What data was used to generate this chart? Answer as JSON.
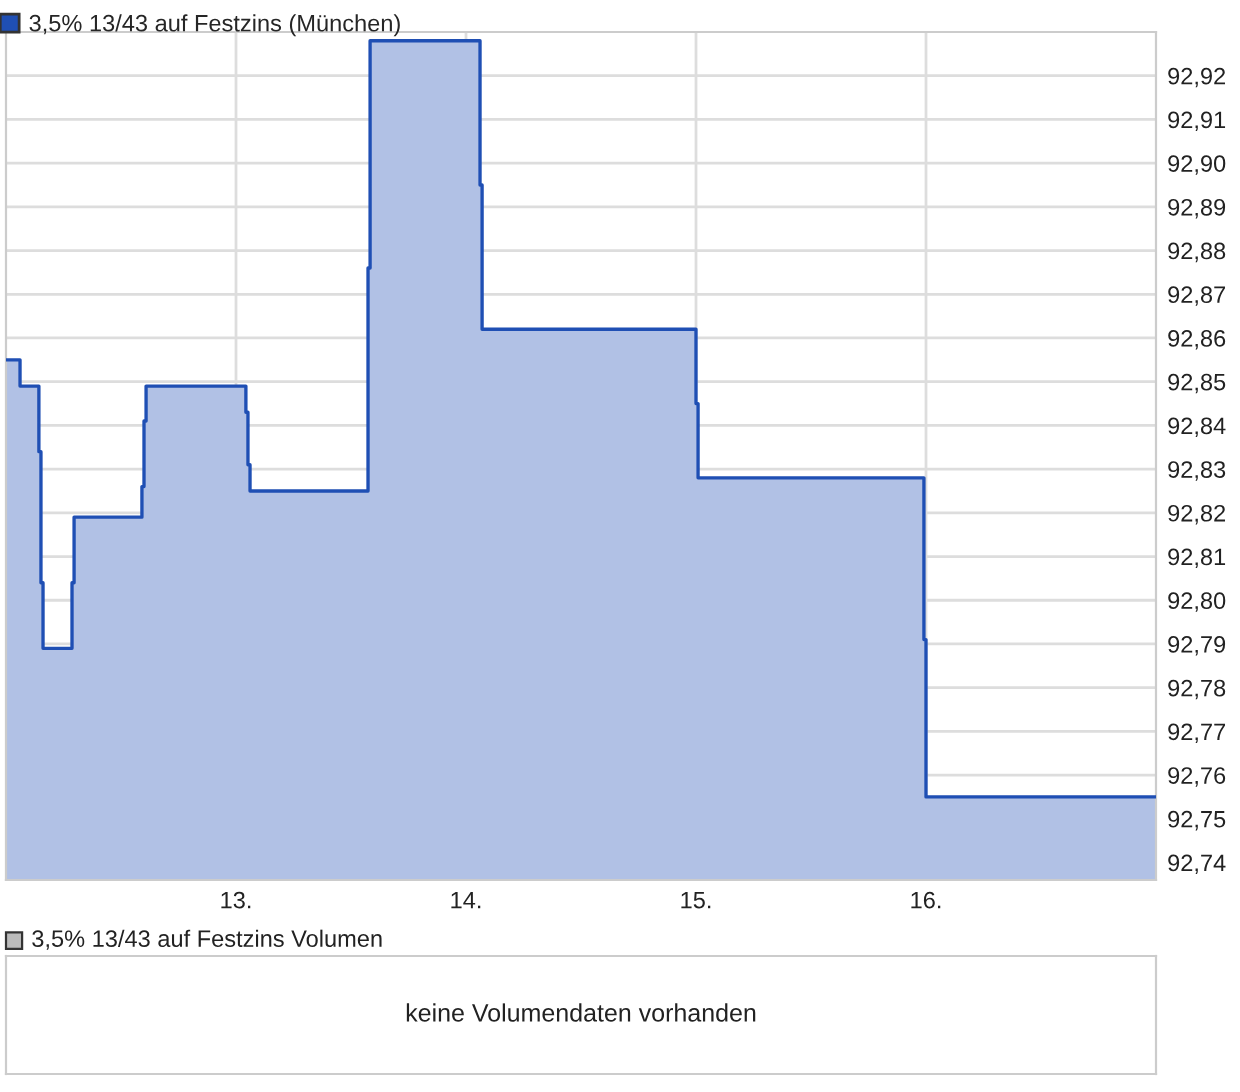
{
  "chart_data": [
    {
      "type": "area",
      "series": [
        {
          "name": "3,5% 13/43 auf Festzins (München)",
          "color": "#1f4fb4",
          "x": [
            12.0,
            12.061,
            12.061,
            12.143,
            12.143,
            12.152,
            12.152,
            12.161,
            12.161,
            12.287,
            12.287,
            12.296,
            12.296,
            12.591,
            12.591,
            12.6,
            12.6,
            12.609,
            12.609,
            13.043,
            13.043,
            13.052,
            13.052,
            13.061,
            13.061,
            13.574,
            13.574,
            13.583,
            13.583,
            14.061,
            14.061,
            14.07,
            14.07,
            15.0,
            15.0,
            15.009,
            15.009,
            15.991,
            15.991,
            16.0,
            16.0,
            17.0
          ],
          "values": [
            92.855,
            92.855,
            92.849,
            92.849,
            92.834,
            92.834,
            92.804,
            92.804,
            92.789,
            92.789,
            92.804,
            92.804,
            92.819,
            92.819,
            92.826,
            92.826,
            92.841,
            92.841,
            92.849,
            92.849,
            92.843,
            92.843,
            92.831,
            92.831,
            92.825,
            92.825,
            92.876,
            92.876,
            92.928,
            92.928,
            92.895,
            92.895,
            92.862,
            92.862,
            92.845,
            92.845,
            92.828,
            92.828,
            92.791,
            92.791,
            92.755,
            92.755
          ]
        }
      ],
      "xlim": [
        12,
        17
      ],
      "xticks": [
        {
          "value": 13,
          "label": "13."
        },
        {
          "value": 14,
          "label": "14."
        },
        {
          "value": 15,
          "label": "15."
        },
        {
          "value": 16,
          "label": "16."
        }
      ],
      "ylim": [
        92.736,
        92.93
      ],
      "yticks": [
        {
          "value": 92.74,
          "label": "92,74"
        },
        {
          "value": 92.75,
          "label": "92,75"
        },
        {
          "value": 92.76,
          "label": "92,76"
        },
        {
          "value": 92.77,
          "label": "92,77"
        },
        {
          "value": 92.78,
          "label": "92,78"
        },
        {
          "value": 92.79,
          "label": "92,79"
        },
        {
          "value": 92.8,
          "label": "92,80"
        },
        {
          "value": 92.81,
          "label": "92,81"
        },
        {
          "value": 92.82,
          "label": "92,82"
        },
        {
          "value": 92.83,
          "label": "92,83"
        },
        {
          "value": 92.84,
          "label": "92,84"
        },
        {
          "value": 92.85,
          "label": "92,85"
        },
        {
          "value": 92.86,
          "label": "92,86"
        },
        {
          "value": 92.87,
          "label": "92,87"
        },
        {
          "value": 92.88,
          "label": "92,88"
        },
        {
          "value": 92.89,
          "label": "92,89"
        },
        {
          "value": 92.9,
          "label": "92,90"
        },
        {
          "value": 92.91,
          "label": "92,91"
        },
        {
          "value": 92.92,
          "label": "92,92"
        }
      ],
      "grid": true,
      "legend": "top left"
    },
    {
      "type": "other",
      "title": "3,5% 13/43 auf Festzins Volumen",
      "annotations": [
        "keine Volumendaten vorhanden"
      ]
    }
  ]
}
